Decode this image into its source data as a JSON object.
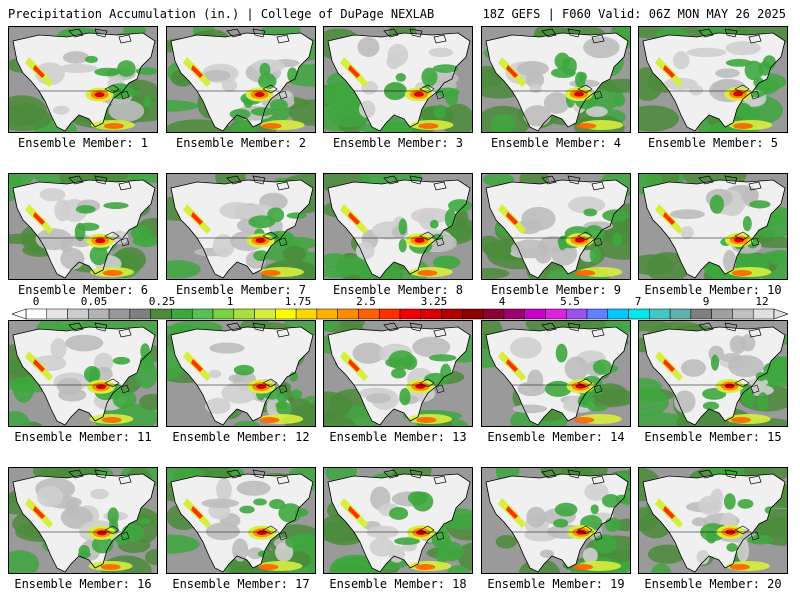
{
  "header": {
    "title": "Precipitation Accumulation (in.) | College of DuPage NEXLAB",
    "run_info": "18Z GEFS | F060 Valid: 06Z MON MAY 26 2025"
  },
  "caption_prefix": "Ensemble Member:",
  "members": [
    "1",
    "2",
    "3",
    "4",
    "5",
    "6",
    "7",
    "8",
    "9",
    "10",
    "11",
    "12",
    "13",
    "14",
    "15",
    "16",
    "17",
    "18",
    "19",
    "20"
  ],
  "colorbar": {
    "labels": [
      "0",
      "0.05",
      "0.25",
      "1",
      "1.75",
      "2.5",
      "3.25",
      "4",
      "5.5",
      "7",
      "9",
      "12"
    ],
    "colors": [
      "#ffffff",
      "#e6e6e6",
      "#cccccc",
      "#b3b3b3",
      "#999999",
      "#808080",
      "#4b8b3b",
      "#3ea73e",
      "#55c155",
      "#7ad23c",
      "#a8e03c",
      "#d8ee3c",
      "#ffff00",
      "#ffd700",
      "#ffb000",
      "#ff8c00",
      "#ff6000",
      "#ff3000",
      "#f00000",
      "#d80000",
      "#b00000",
      "#900000",
      "#8b0030",
      "#a0006e",
      "#c800c8",
      "#e020e0",
      "#a050f0",
      "#6080ff",
      "#00c8ff",
      "#00e8e8",
      "#40c8c8",
      "#60b0b0",
      "#808080",
      "#a0a0a0",
      "#c0c0c0",
      "#e0e0e0"
    ]
  }
}
